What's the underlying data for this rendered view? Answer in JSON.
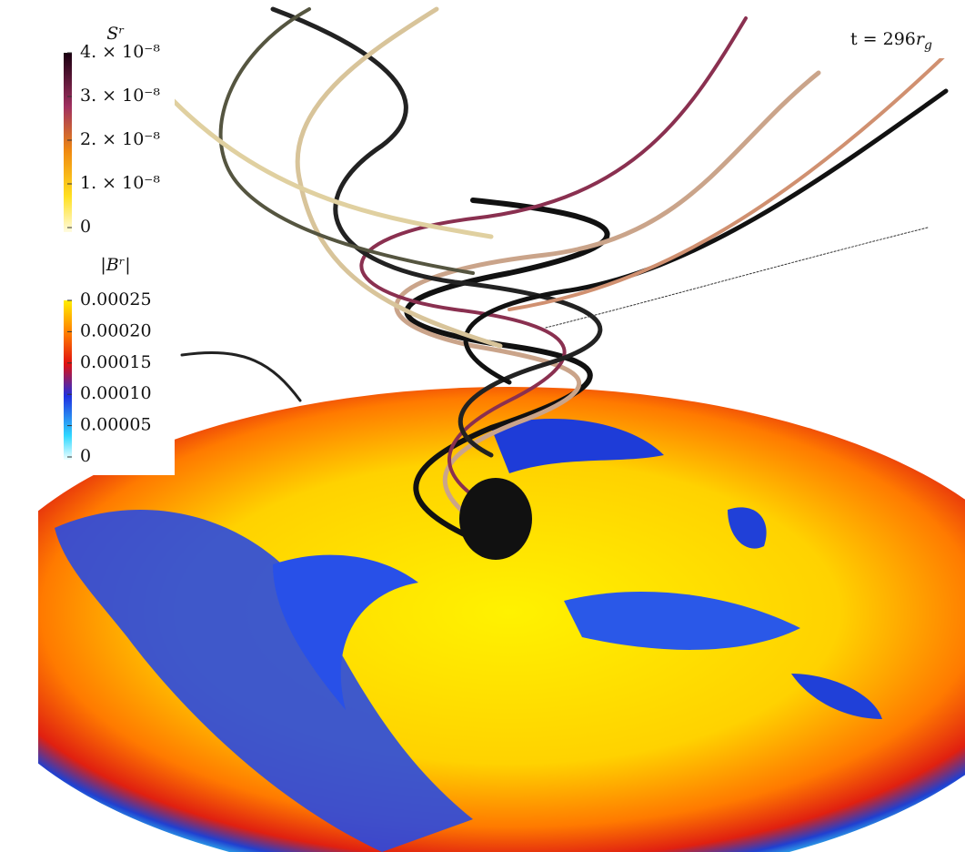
{
  "annotation": {
    "text": "t = 296",
    "variable": "r",
    "subscript": "g"
  },
  "colorbars": [
    {
      "title": "Sʳ",
      "ticks": [
        "4. × 10⁻⁸",
        "3. × 10⁻⁸",
        "2. × 10⁻⁸",
        "1. × 10⁻⁸",
        "0"
      ]
    },
    {
      "title": "|Bʳ|",
      "ticks": [
        "0.00025",
        "0.00020",
        "0.00015",
        "0.00010",
        "0.00005",
        "0"
      ]
    }
  ]
}
